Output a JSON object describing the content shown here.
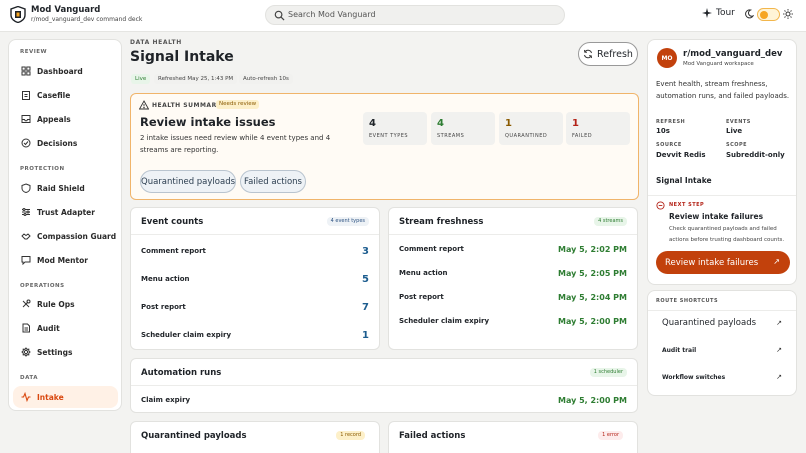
{
  "app": {
    "name": "Mod Vanguard",
    "subtitle": "r/mod_vanguard_dev command deck"
  },
  "search": {
    "placeholder": "Search Mod Vanguard"
  },
  "topbar": {
    "tour_label": "Tour"
  },
  "sidebar": {
    "sections": [
      {
        "label": "REVIEW",
        "items": [
          "Dashboard",
          "Casefile",
          "Appeals",
          "Decisions"
        ]
      },
      {
        "label": "PROTECTION",
        "items": [
          "Raid Shield",
          "Trust Adapter",
          "Compassion Guard",
          "Mod Mentor"
        ]
      },
      {
        "label": "OPERATIONS",
        "items": [
          "Rule Ops",
          "Audit",
          "Settings"
        ]
      },
      {
        "label": "DATA",
        "items": [
          "Intake"
        ]
      }
    ],
    "active_item": "Intake"
  },
  "header": {
    "breadcrumb": "DATA HEALTH",
    "title": "Signal Intake",
    "chips": {
      "live": "Live",
      "refreshed": "Refreshed May 25, 1:43 PM",
      "auto_refresh": "Auto-refresh 10s"
    },
    "refresh_label": "Refresh"
  },
  "health": {
    "label": "HEALTH SUMMARY",
    "badge": "Needs review",
    "title": "Review intake issues",
    "description": "2 intake issues need review while 4 event types and 4 streams are reporting.",
    "stats": [
      {
        "value": "4",
        "label": "EVENT TYPES",
        "color": "#1f2328"
      },
      {
        "value": "4",
        "label": "STREAMS",
        "color": "#2e7d32"
      },
      {
        "value": "1",
        "label": "QUARANTINED",
        "color": "#8a5a00"
      },
      {
        "value": "1",
        "label": "FAILED",
        "color": "#b42318"
      }
    ],
    "buttons": {
      "quarantined": "Quarantined payloads",
      "failed": "Failed actions"
    }
  },
  "event_counts": {
    "title": "Event counts",
    "badge": "4 event types",
    "rows": [
      {
        "name": "Comment report",
        "value": "3"
      },
      {
        "name": "Menu action",
        "value": "5"
      },
      {
        "name": "Post report",
        "value": "7"
      },
      {
        "name": "Scheduler claim expiry",
        "value": "1"
      }
    ]
  },
  "stream_freshness": {
    "title": "Stream freshness",
    "badge": "4 streams",
    "rows": [
      {
        "name": "Comment report",
        "value": "May 5, 2:02 PM"
      },
      {
        "name": "Menu action",
        "value": "May 5, 2:05 PM"
      },
      {
        "name": "Post report",
        "value": "May 5, 2:04 PM"
      },
      {
        "name": "Scheduler claim expiry",
        "value": "May 5, 2:00 PM"
      }
    ]
  },
  "automation_runs": {
    "title": "Automation runs",
    "badge": "1 scheduler",
    "rows": [
      {
        "name": "Claim expiry",
        "value": "May 5, 2:00 PM"
      }
    ]
  },
  "quarantined_payloads": {
    "title": "Quarantined payloads",
    "badge": "1 record"
  },
  "failed_actions": {
    "title": "Failed actions",
    "badge": "1 error"
  },
  "workspace": {
    "avatar": "MO",
    "name": "r/mod_vanguard_dev",
    "sub": "Mod Vanguard workspace",
    "description": "Event health, stream freshness, automation runs, and failed payloads.",
    "kv": {
      "refresh_label": "REFRESH",
      "refresh_value": "10s",
      "events_label": "EVENTS",
      "events_value": "Live",
      "source_label": "SOURCE",
      "source_value": "Devvit Redis",
      "scope_label": "SCOPE",
      "scope_value": "Subreddit-only"
    },
    "active_page": "Signal Intake",
    "next_step": {
      "label": "NEXT STEP",
      "title": "Review intake failures",
      "description": "Check quarantined payloads and failed actions before trusting dashboard counts.",
      "cta": "Review intake failures"
    }
  },
  "shortcuts": {
    "label": "ROUTE SHORTCUTS",
    "links": [
      "Quarantined payloads",
      "Audit trail",
      "Workflow switches"
    ]
  },
  "colors": {
    "accent": "#c2410c",
    "active_bg": "#fff1e6",
    "warning_border": "#f0b46a"
  }
}
